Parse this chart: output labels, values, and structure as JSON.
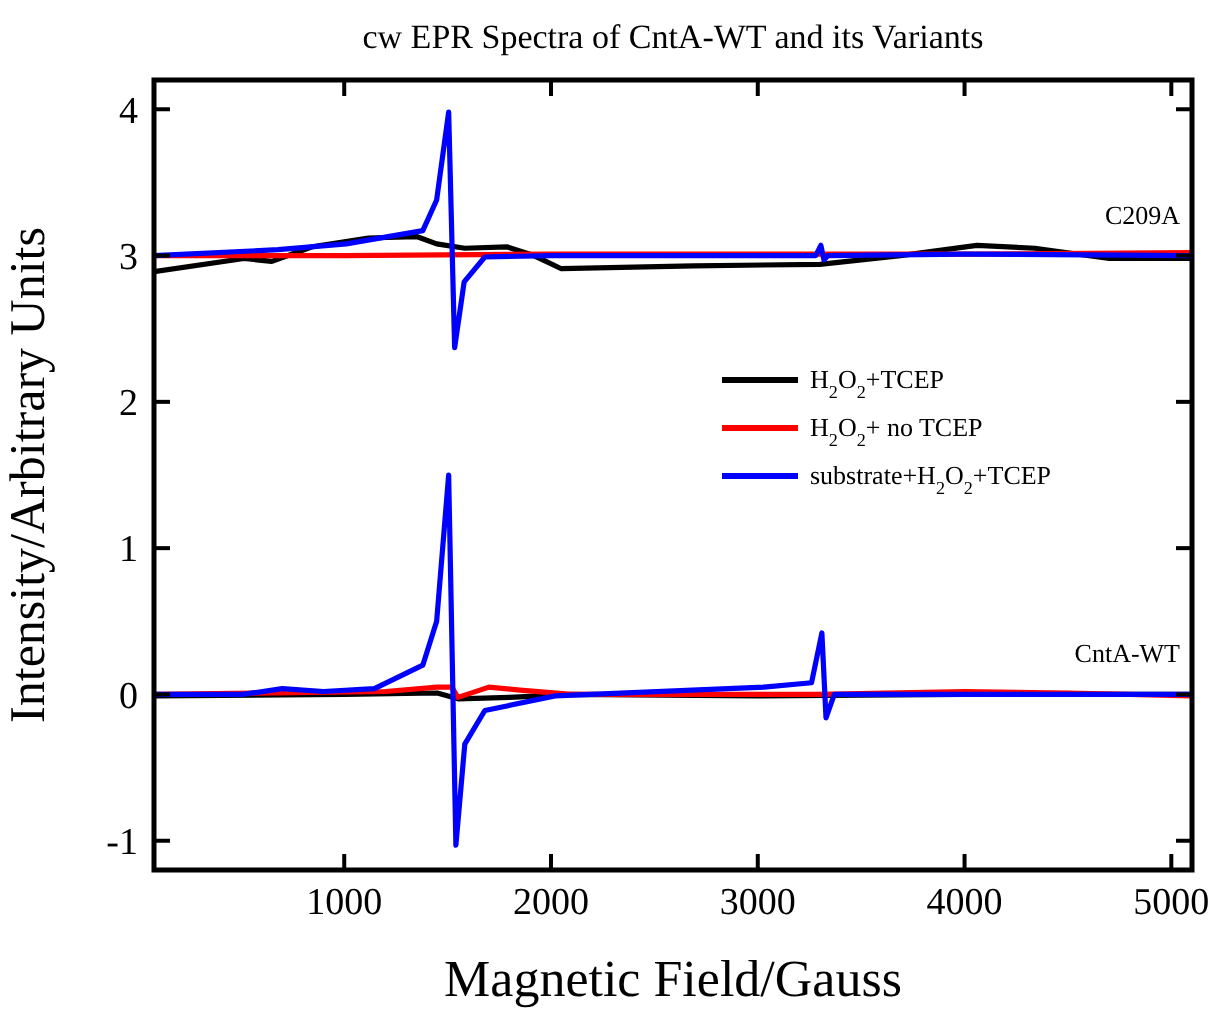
{
  "chart_data": {
    "type": "line",
    "title": "cw EPR Spectra of CntA-WT and its Variants",
    "xlabel": "Magnetic Field/Gauss",
    "ylabel": "Intensity/Arbitrary Units",
    "xlim": [
      80,
      5100
    ],
    "ylim": [
      -1.2,
      4.2
    ],
    "xticks": [
      1000,
      2000,
      3000,
      4000,
      5000
    ],
    "yticks": [
      -1,
      0,
      1,
      2,
      3,
      4
    ],
    "grid": false,
    "legend": "right",
    "line_style": "solid",
    "annotations": [
      "C209A",
      "CntA-WT"
    ],
    "series": [
      {
        "name": "H$_{2}$O$_{2}$+TCEP",
        "color": "#000000",
        "x": [
          80,
          515,
          650,
          845,
          1117,
          1350,
          1447,
          1583,
          1786,
          1917,
          2050,
          2690,
          3300,
          3690,
          4060,
          4340,
          4700,
          5097
        ],
        "values": [
          2.89,
          2.98,
          2.96,
          3.06,
          3.12,
          3.13,
          3.08,
          3.05,
          3.06,
          3.0,
          2.91,
          2.93,
          2.94,
          3.0,
          3.07,
          3.05,
          2.98,
          2.98
        ]
      },
      {
        "name": "H$_{2}$O$_{2}$+ no TCEP",
        "color": "#ff0000",
        "x": [
          80,
          1000,
          2000,
          3000,
          4000,
          5097
        ],
        "values": [
          3.0,
          3.0,
          3.01,
          3.01,
          3.01,
          3.02
        ]
      },
      {
        "name": "substrate+H$_{2}$O$_{2}$+TCEP",
        "color": "#0000ff",
        "x": [
          80,
          680,
          1010,
          1380,
          1447,
          1505,
          1534,
          1580,
          1680,
          2000,
          3280,
          3305,
          3320,
          3340,
          4000,
          5097
        ],
        "values": [
          3.0,
          3.04,
          3.08,
          3.17,
          3.38,
          3.98,
          2.37,
          2.82,
          2.99,
          3.0,
          3.0,
          3.07,
          2.97,
          3.0,
          3.01,
          3.0
        ]
      },
      {
        "color": "#000000",
        "x": [
          80,
          1000,
          1450,
          1550,
          1800,
          2100,
          3000,
          4000,
          5097
        ],
        "values": [
          -0.01,
          0.0,
          0.01,
          -0.03,
          -0.02,
          0.0,
          -0.01,
          0.0,
          0.0
        ]
      },
      {
        "color": "#ff0000",
        "x": [
          80,
          1200,
          1450,
          1520,
          1550,
          1700,
          1850,
          2100,
          3300,
          4000,
          4500,
          5097
        ],
        "values": [
          0.0,
          0.02,
          0.05,
          0.05,
          -0.02,
          0.05,
          0.03,
          0.0,
          0.0,
          0.02,
          0.01,
          -0.01
        ]
      },
      {
        "color": "#0000ff",
        "x": [
          80,
          510,
          700,
          900,
          1146,
          1380,
          1447,
          1505,
          1540,
          1583,
          1680,
          2020,
          3030,
          3260,
          3310,
          3330,
          3370,
          4000,
          5097
        ],
        "values": [
          0.0,
          0.0,
          0.04,
          0.02,
          0.04,
          0.2,
          0.5,
          1.5,
          -1.03,
          -0.34,
          -0.11,
          -0.01,
          0.05,
          0.08,
          0.42,
          -0.16,
          0.0,
          0.0,
          0.0
        ]
      }
    ]
  }
}
